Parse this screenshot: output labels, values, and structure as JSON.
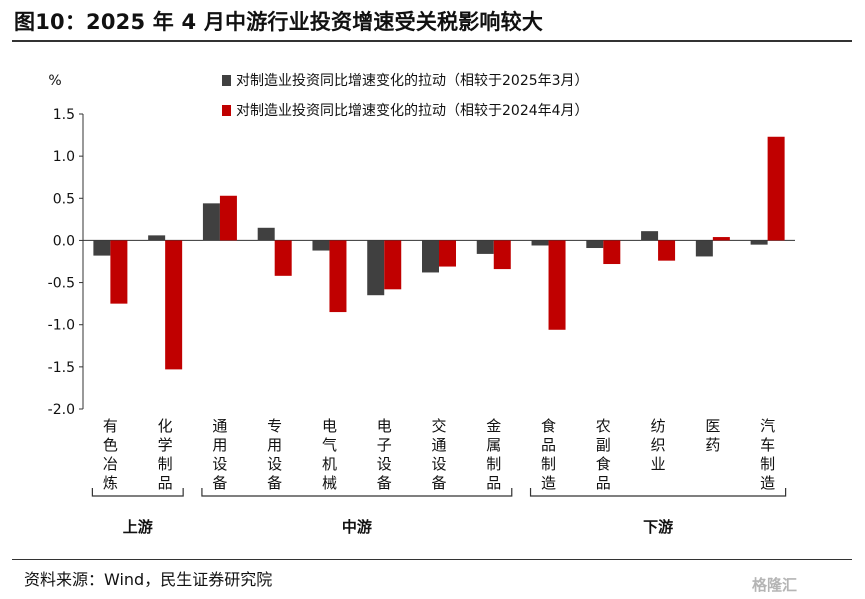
{
  "title": "图10：2025 年 4 月中游行业投资增速受关税影响较大",
  "source": "资料来源：Wind，民生证券研究院",
  "watermark": "格隆汇",
  "chart_data": {
    "type": "bar",
    "ylabel": "%",
    "ylim": [
      -2.0,
      1.5
    ],
    "yticks": [
      "1.5",
      "1.0",
      "0.5",
      "0.0",
      "-0.5",
      "-1.0",
      "-1.5",
      "-2.0"
    ],
    "grid": false,
    "legend_position": "top",
    "colors": {
      "series1": "#404040",
      "series2": "#c00000"
    },
    "categories": [
      "有色冶炼",
      "化学制品",
      "通用设备",
      "专用设备",
      "电气机械",
      "电子设备",
      "交通设备",
      "金属制品",
      "食品制造",
      "农副食品",
      "纺织业",
      "医药",
      "汽车制造"
    ],
    "series": [
      {
        "name": "对制造业投资同比增速变化的拉动（相较于2025年3月）",
        "values": [
          -0.18,
          0.06,
          0.44,
          0.15,
          -0.12,
          -0.65,
          -0.38,
          -0.16,
          -0.06,
          -0.09,
          0.11,
          -0.19,
          -0.05
        ]
      },
      {
        "name": "对制造业投资同比增速变化的拉动（相较于2024年4月）",
        "values": [
          -0.75,
          -1.53,
          0.53,
          -0.42,
          -0.85,
          -0.58,
          -0.31,
          -0.34,
          -1.06,
          -0.28,
          -0.24,
          0.04,
          1.23
        ]
      }
    ],
    "groups": [
      {
        "label": "上游",
        "from": 0,
        "to": 1
      },
      {
        "label": "中游",
        "from": 2,
        "to": 7
      },
      {
        "label": "下游",
        "from": 8,
        "to": 12
      }
    ]
  }
}
